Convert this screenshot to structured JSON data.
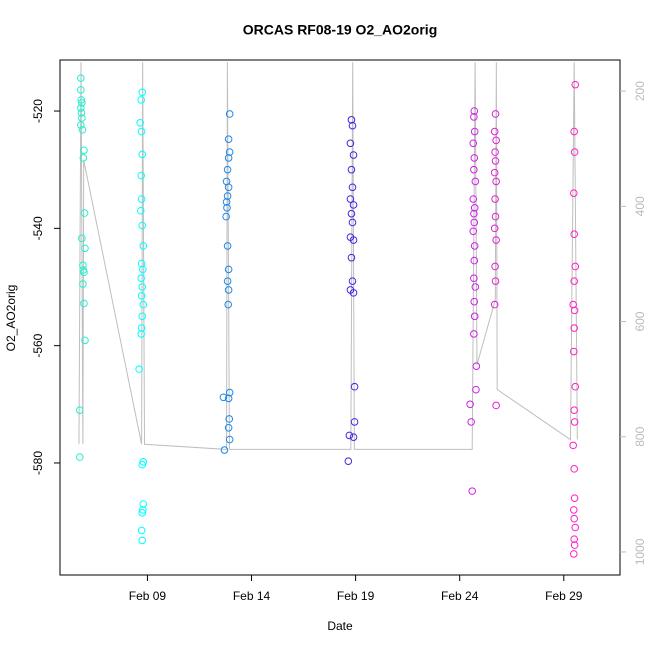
{
  "chart_data": {
    "type": "scatter",
    "title": "ORCAS RF08-19 O2_AO2orig",
    "x_label": "Date",
    "y_label": "O2_AO2orig",
    "xlim": [
      4.8,
      31.7
    ],
    "xticks": [
      {
        "value": 9,
        "label": "Feb 09"
      },
      {
        "value": 14,
        "label": "Feb 14"
      },
      {
        "value": 19,
        "label": "Feb 19"
      },
      {
        "value": 24,
        "label": "Feb 24"
      },
      {
        "value": 29,
        "label": "Feb 29"
      }
    ],
    "ylim": [
      -599.1,
      -511.3
    ],
    "yticks": [
      -520,
      -540,
      -560,
      -580
    ],
    "y2lim": [
      1040,
      146
    ],
    "y2ticks": [
      200,
      400,
      600,
      800,
      1000
    ],
    "series": [
      {
        "type": "line",
        "axis": "y2",
        "color": "#bebebe",
        "x": [
          5.71,
          5.81,
          5.9,
          5.94,
          8.72,
          8.77,
          8.86,
          12.8,
          12.84,
          12.94,
          18.77,
          18.86,
          18.94,
          24.6,
          24.74,
          24.83,
          25.71,
          25.76,
          25.8,
          29.32,
          29.5,
          29.65
        ],
        "values": [
          813,
          150,
          813,
          320,
          813,
          150,
          813,
          822,
          150,
          822,
          822,
          150,
          822,
          822,
          150,
          675,
          562,
          150,
          718,
          805,
          150,
          805
        ]
      },
      {
        "color": "#22f0d0",
        "x": [
          5.8,
          5.8,
          5.82,
          5.85,
          5.8,
          5.83,
          5.85,
          5.8,
          5.88,
          5.95,
          5.92,
          5.98,
          5.85,
          6.0,
          5.9,
          5.92,
          5.95,
          5.9,
          5.95,
          6.0,
          5.75,
          5.75
        ],
        "values": [
          -514.4,
          -516.4,
          -518.1,
          -518.6,
          -519.5,
          -520.3,
          -521.2,
          -522.4,
          -523.2,
          -526.7,
          -528.0,
          -537.4,
          -541.7,
          -543.4,
          -546.3,
          -547.1,
          -547.5,
          -549.5,
          -552.8,
          -559.1,
          -571.0,
          -579.0
        ]
      },
      {
        "color": "#00ffff",
        "x": [
          8.75,
          8.7,
          8.65,
          8.72,
          8.75,
          8.7,
          8.72,
          8.68,
          8.75,
          8.8,
          8.72,
          8.78,
          8.7,
          8.75,
          8.72,
          8.8,
          8.75,
          8.72,
          8.7,
          8.6,
          8.8,
          8.75,
          8.8,
          8.78,
          8.75,
          8.72,
          8.75
        ],
        "values": [
          -516.8,
          -518.1,
          -522,
          -523.5,
          -527.4,
          -531,
          -535,
          -537,
          -539.5,
          -543,
          -546,
          -547,
          -548.5,
          -550,
          -551.5,
          -553,
          -555,
          -557,
          -558,
          -564,
          -579.8,
          -580.3,
          -587,
          -588,
          -588.5,
          -591.5,
          -593.2
        ]
      },
      {
        "color": "#1e88e8",
        "x": [
          12.95,
          12.9,
          12.95,
          12.9,
          12.85,
          12.8,
          12.9,
          12.85,
          12.8,
          12.82,
          12.78,
          12.85,
          12.9,
          12.85,
          12.9,
          12.88,
          12.65,
          12.95,
          12.9,
          12.93,
          12.9,
          12.95,
          12.7
        ],
        "values": [
          -520.5,
          -524.8,
          -527,
          -528,
          -530,
          -532,
          -533,
          -534.5,
          -535.5,
          -536.5,
          -538,
          -543,
          -547,
          -549,
          -550.5,
          -553,
          -568.8,
          -568,
          -569,
          -572.5,
          -574,
          -576,
          -577.8
        ]
      },
      {
        "color": "#4a22e6",
        "x": [
          18.8,
          18.85,
          18.75,
          18.9,
          18.8,
          18.85,
          18.75,
          18.9,
          18.8,
          18.85,
          18.75,
          18.9,
          18.8,
          18.85,
          18.75,
          18.9,
          18.95,
          18.95,
          18.7,
          18.9,
          18.65
        ],
        "values": [
          -521.5,
          -522.5,
          -525.5,
          -527.5,
          -530,
          -533,
          -535,
          -536,
          -537.5,
          -539,
          -541.5,
          -542,
          -545,
          -549,
          -550.5,
          -551,
          -567,
          -573,
          -575.3,
          -575.6,
          -579.7
        ]
      },
      {
        "color": "#d022e6",
        "x": [
          24.7,
          24.68,
          24.72,
          24.65,
          24.7,
          24.68,
          24.75,
          24.65,
          24.72,
          24.68,
          24.7,
          24.65,
          24.72,
          24.7,
          24.68,
          24.75,
          24.7,
          24.72,
          24.68,
          24.8,
          24.78,
          24.5,
          24.55,
          24.6
        ],
        "values": [
          -520,
          -521,
          -523.5,
          -525.5,
          -528,
          -530,
          -532,
          -535,
          -536.5,
          -537.5,
          -539,
          -540.5,
          -543,
          -545.5,
          -548.5,
          -550,
          -552.5,
          -555,
          -558,
          -563.5,
          -567.5,
          -570,
          -573,
          -584.8
        ]
      },
      {
        "color": "#e022d6",
        "x": [
          25.72,
          25.68,
          25.75,
          25.7,
          25.72,
          25.68,
          25.75,
          25.7,
          25.72,
          25.68,
          25.75,
          25.7,
          25.72,
          25.68,
          25.75
        ],
        "values": [
          -520.5,
          -523.5,
          -525,
          -527,
          -528.5,
          -530.5,
          -532,
          -535,
          -538,
          -540,
          -542,
          -546.5,
          -549,
          -553,
          -570.2
        ]
      },
      {
        "color": "#ff22c4",
        "x": [
          29.55,
          29.5,
          29.52,
          29.48,
          29.5,
          29.55,
          29.5,
          29.45,
          29.52,
          29.5,
          29.48,
          29.55,
          29.5,
          29.52,
          29.45,
          29.5,
          29.52,
          29.48,
          29.5,
          29.55,
          29.5,
          29.52,
          29.48
        ],
        "values": [
          -515.5,
          -523.5,
          -527,
          -534,
          -541,
          -546.5,
          -549,
          -553,
          -554,
          -557,
          -561,
          -567,
          -571,
          -573,
          -577,
          -581,
          -586,
          -588,
          -589.5,
          -591,
          -593,
          -594,
          -595.5
        ]
      }
    ]
  }
}
